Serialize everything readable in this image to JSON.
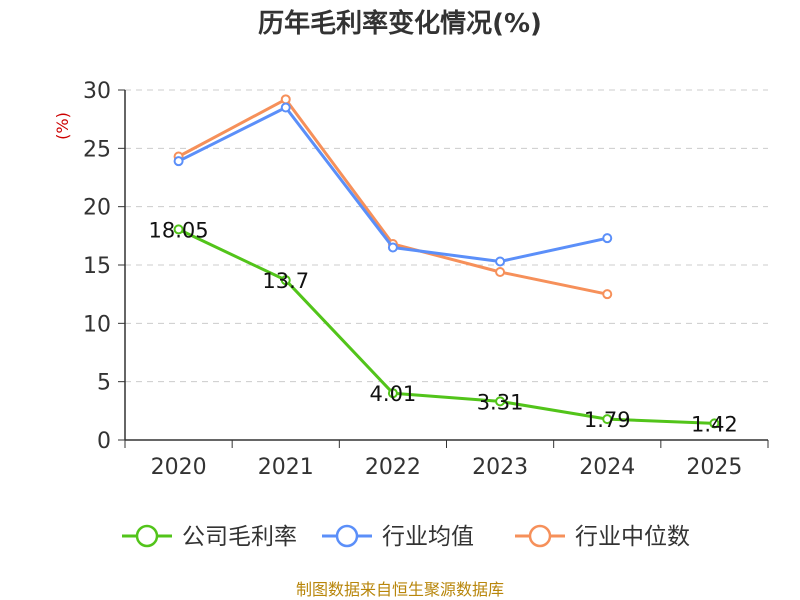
{
  "chart_data": {
    "type": "line",
    "title": "历年毛利率变化情况(%)",
    "ylabel": "(%)",
    "xlabel": "",
    "categories": [
      "2020",
      "2021",
      "2022",
      "2023",
      "2024",
      "2025"
    ],
    "ylim": [
      0,
      30
    ],
    "yticks": [
      0,
      5,
      10,
      15,
      20,
      25,
      30
    ],
    "grid": true,
    "legend_position": "bottom",
    "series": [
      {
        "name": "公司毛利率",
        "color": "#52c41a",
        "values": [
          18.05,
          13.7,
          4.01,
          3.31,
          1.79,
          1.42
        ],
        "labels": [
          "18.05",
          "13.7",
          "4.01",
          "3.31",
          "1.79",
          "1.42"
        ]
      },
      {
        "name": "行业均值",
        "color": "#5b8ff9",
        "values": [
          23.9,
          28.5,
          16.5,
          15.3,
          17.3,
          null
        ]
      },
      {
        "name": "行业中位数",
        "color": "#f6905a",
        "values": [
          24.3,
          29.2,
          16.8,
          14.4,
          12.5,
          null
        ]
      }
    ],
    "source": "制图数据来自恒生聚源数据库"
  }
}
